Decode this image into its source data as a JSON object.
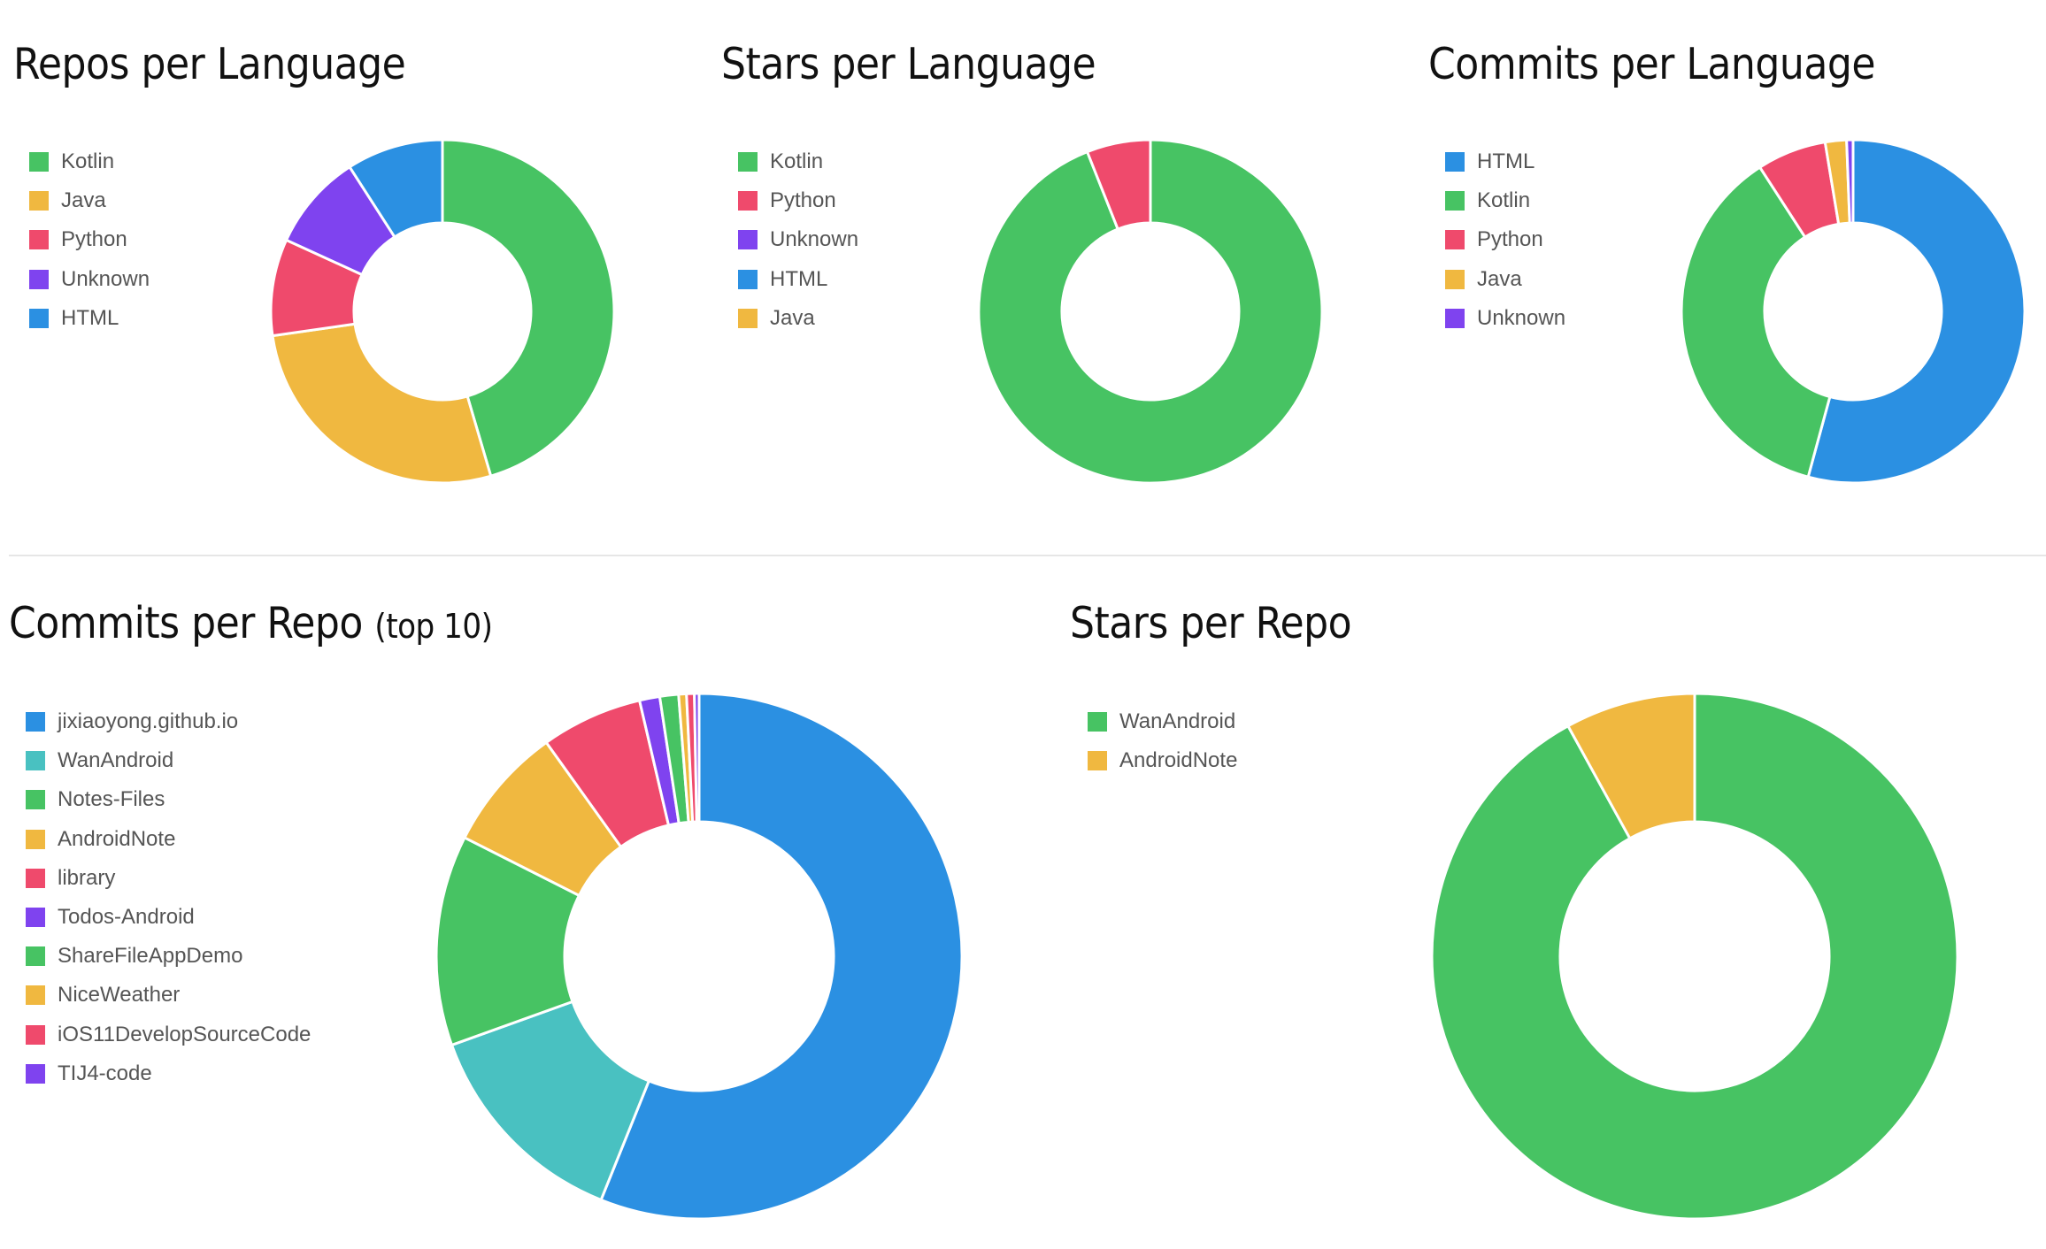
{
  "chart_data": [
    {
      "type": "pie",
      "title": "Repos per Language",
      "categories": [
        "Kotlin",
        "Java",
        "Python",
        "Unknown",
        "HTML"
      ],
      "values": [
        5,
        3,
        1,
        1,
        1
      ],
      "colors": [
        "#47c363",
        "#f0b840",
        "#ef4a6c",
        "#7f43ef",
        "#2b90e2"
      ],
      "legend": "left"
    },
    {
      "type": "pie",
      "title": "Stars per Language",
      "categories": [
        "Kotlin",
        "Python",
        "Unknown",
        "HTML",
        "Java"
      ],
      "values": [
        94,
        6,
        0,
        0,
        0
      ],
      "colors": [
        "#47c363",
        "#ef4a6c",
        "#7f43ef",
        "#2b90e2",
        "#f0b840"
      ],
      "legend": "left"
    },
    {
      "type": "pie",
      "title": "Commits per Language",
      "categories": [
        "HTML",
        "Kotlin",
        "Python",
        "Java",
        "Unknown"
      ],
      "values": [
        54,
        36.5,
        6.5,
        2,
        0.6
      ],
      "colors": [
        "#2b90e2",
        "#47c363",
        "#ef4a6c",
        "#f0b840",
        "#7f43ef"
      ],
      "legend": "left"
    },
    {
      "type": "pie",
      "title": "Commits per Repo",
      "subtitle": "(top 10)",
      "categories": [
        "jixiaoyong.github.io",
        "WanAndroid",
        "Notes-Files",
        "AndroidNote",
        "library",
        "Todos-Android",
        "ShareFileAppDemo",
        "NiceWeather",
        "iOS11DevelopSourceCode",
        "TIJ4-code"
      ],
      "values": [
        58.5,
        14,
        13.5,
        8,
        6.5,
        1.3,
        1.2,
        0.5,
        0.5,
        0.3
      ],
      "colors": [
        "#2b90e2",
        "#49c1c1",
        "#47c363",
        "#f0b840",
        "#ef4a6c",
        "#7f43ef",
        "#47c363",
        "#f0b840",
        "#ef4a6c",
        "#7f43ef"
      ],
      "legend": "left"
    },
    {
      "type": "pie",
      "title": "Stars per Repo",
      "categories": [
        "WanAndroid",
        "AndroidNote"
      ],
      "values": [
        92,
        8
      ],
      "colors": [
        "#47c363",
        "#f0b840"
      ],
      "legend": "left"
    }
  ]
}
